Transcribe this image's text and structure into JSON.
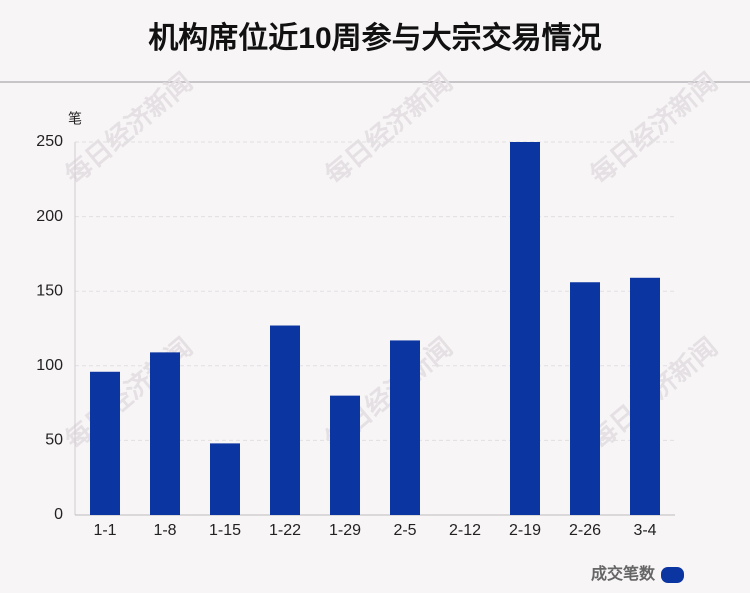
{
  "chart_data": {
    "type": "bar",
    "title": "机构席位近10周参与大宗交易情况",
    "y_label": "笔",
    "watermark": "每日经济新闻",
    "categories": [
      "1-1",
      "1-8",
      "1-15",
      "1-22",
      "1-29",
      "2-5",
      "2-12",
      "2-19",
      "2-26",
      "3-4"
    ],
    "series": [
      {
        "name": "成交笔数",
        "color": "#0b35a0",
        "values": [
          96,
          109,
          48,
          127,
          80,
          117,
          0,
          250,
          156,
          159
        ]
      }
    ],
    "ylim": [
      0,
      250
    ],
    "yticks": [
      0,
      50,
      100,
      150,
      200,
      250
    ],
    "grid": true,
    "legend": "bottom-right"
  }
}
